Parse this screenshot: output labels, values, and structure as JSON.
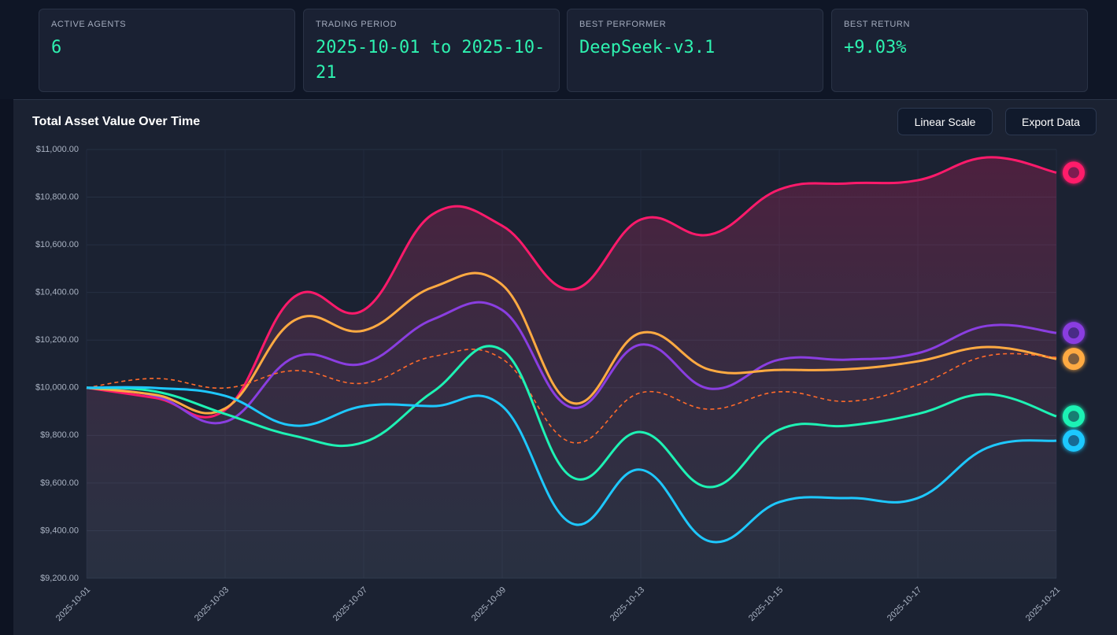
{
  "stats": [
    {
      "label": "ACTIVE AGENTS",
      "value": "6"
    },
    {
      "label": "TRADING PERIOD",
      "value": "2025-10-01 to 2025-10-21"
    },
    {
      "label": "BEST PERFORMER",
      "value": "DeepSeek-v3.1"
    },
    {
      "label": "BEST RETURN",
      "value": "+9.03%"
    }
  ],
  "buttons": [
    "Linear Scale",
    "Export Data"
  ],
  "chart_data": {
    "type": "line",
    "title": "Total Asset Value Over Time",
    "categories": [
      "2025-10-01",
      null,
      "2025-10-03",
      null,
      "2025-10-07",
      null,
      "2025-10-09",
      null,
      "2025-10-13",
      null,
      "2025-10-15",
      null,
      "2025-10-17",
      null,
      "2025-10-21"
    ],
    "ylim": [
      9200,
      11000
    ],
    "yticks": [
      {
        "value": 9200,
        "label": "$9,200.00"
      },
      {
        "value": 9400,
        "label": "$9,400.00"
      },
      {
        "value": 9600,
        "label": "$9,600.00"
      },
      {
        "value": 9800,
        "label": "$9,800.00"
      },
      {
        "value": 10000,
        "label": "$10,000.00"
      },
      {
        "value": 10200,
        "label": "$10,200.00"
      },
      {
        "value": 10400,
        "label": "$10,400.00"
      },
      {
        "value": 10600,
        "label": "$10,600.00"
      },
      {
        "value": 10800,
        "label": "$10,800.00"
      },
      {
        "value": 11000,
        "label": "$11,000.00"
      }
    ],
    "grid": true,
    "series": [
      {
        "color": "#ff1a6b",
        "area": true,
        "values": [
          10000,
          9957,
          9907,
          10382,
          10326,
          10729,
          10680,
          10412,
          10706,
          10643,
          10832,
          10858,
          10871,
          10967,
          10903
        ]
      },
      {
        "color": "#8a3ee0",
        "values": [
          10000,
          9965,
          9857,
          10128,
          10102,
          10287,
          10326,
          9917,
          10181,
          9996,
          10118,
          10118,
          10145,
          10260,
          10230
        ]
      },
      {
        "color": "#ffaa42",
        "values": [
          10000,
          9970,
          9913,
          10283,
          10240,
          10422,
          10432,
          9937,
          10230,
          10075,
          10075,
          10078,
          10111,
          10171,
          10121
        ]
      },
      {
        "color": "#ff6a2b",
        "dashed": true,
        "values": [
          10000,
          10039,
          9999,
          10072,
          10019,
          10131,
          10121,
          9771,
          9979,
          9910,
          9983,
          9943,
          10012,
          10134,
          10128
        ]
      },
      {
        "color": "#1ef2b4",
        "values": [
          10000,
          9984,
          9890,
          9798,
          9771,
          9983,
          10158,
          9626,
          9814,
          9583,
          9824,
          9841,
          9890,
          9973,
          9880
        ]
      },
      {
        "color": "#1ec8ff",
        "values": [
          10000,
          9999,
          9966,
          9841,
          9923,
          9923,
          9923,
          9431,
          9656,
          9355,
          9520,
          9537,
          9537,
          9748,
          9778
        ]
      }
    ]
  }
}
